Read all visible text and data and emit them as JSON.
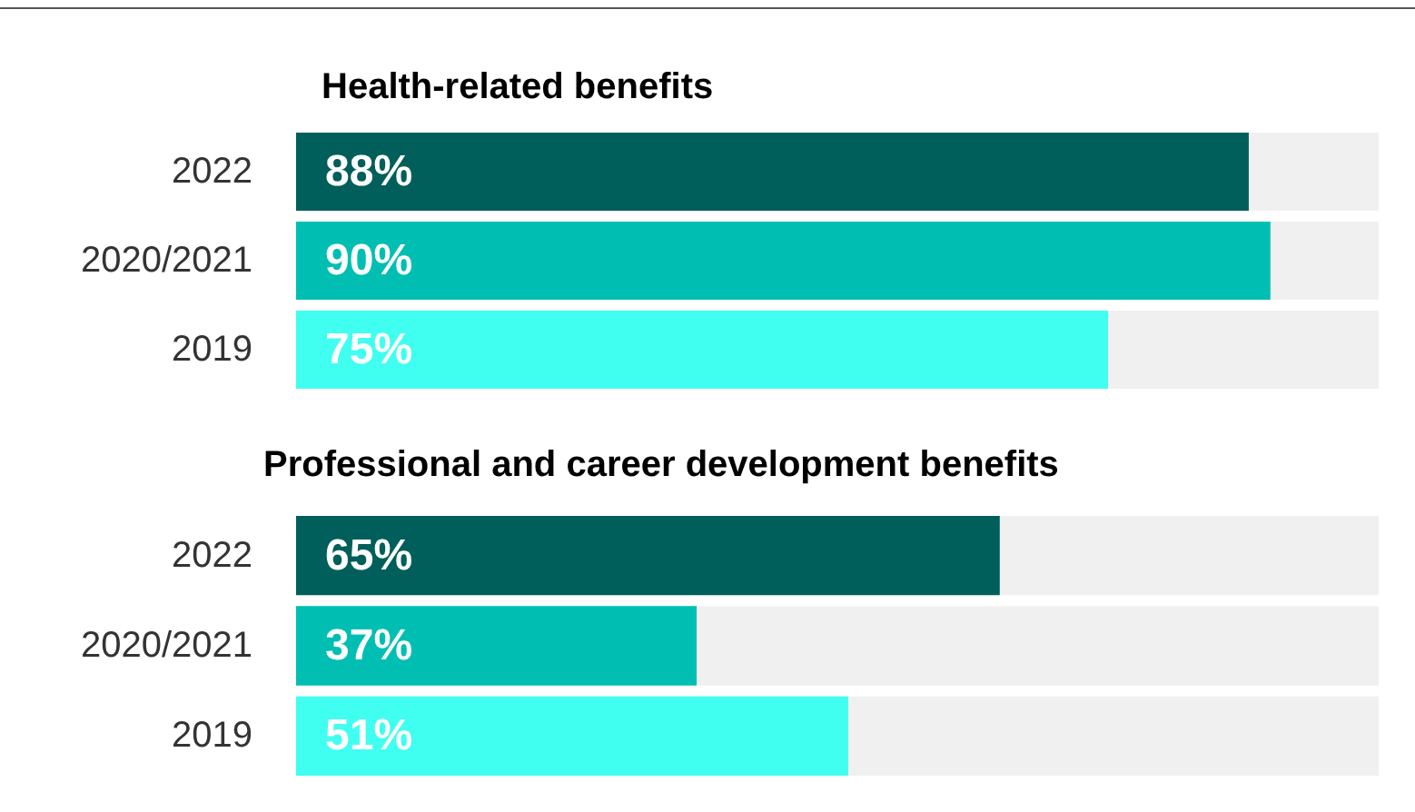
{
  "chart_data": [
    {
      "type": "bar",
      "orientation": "horizontal",
      "title": "Health-related benefits",
      "categories": [
        "2022",
        "2020/2021",
        "2019"
      ],
      "values": [
        88,
        90,
        75
      ],
      "value_labels": [
        "88%",
        "90%",
        "75%"
      ],
      "colors": [
        "#005f5a",
        "#00bfb2",
        "#40fff0"
      ],
      "bands": [
        {
          "axis": "x",
          "from": 0,
          "to": 100,
          "color": "#f0f0f0"
        }
      ],
      "tick_labels": "y"
    },
    {
      "type": "bar",
      "orientation": "horizontal",
      "title": "Professional and career development benefits",
      "categories": [
        "2022",
        "2020/2021",
        "2019"
      ],
      "values": [
        65,
        37,
        51
      ],
      "value_labels": [
        "65%",
        "37%",
        "51%"
      ],
      "colors": [
        "#005f5a",
        "#00bfb2",
        "#40fff0"
      ],
      "bands": [
        {
          "axis": "x",
          "from": 0,
          "to": 100,
          "color": "#f0f0f0"
        }
      ],
      "tick_labels": "y"
    }
  ]
}
